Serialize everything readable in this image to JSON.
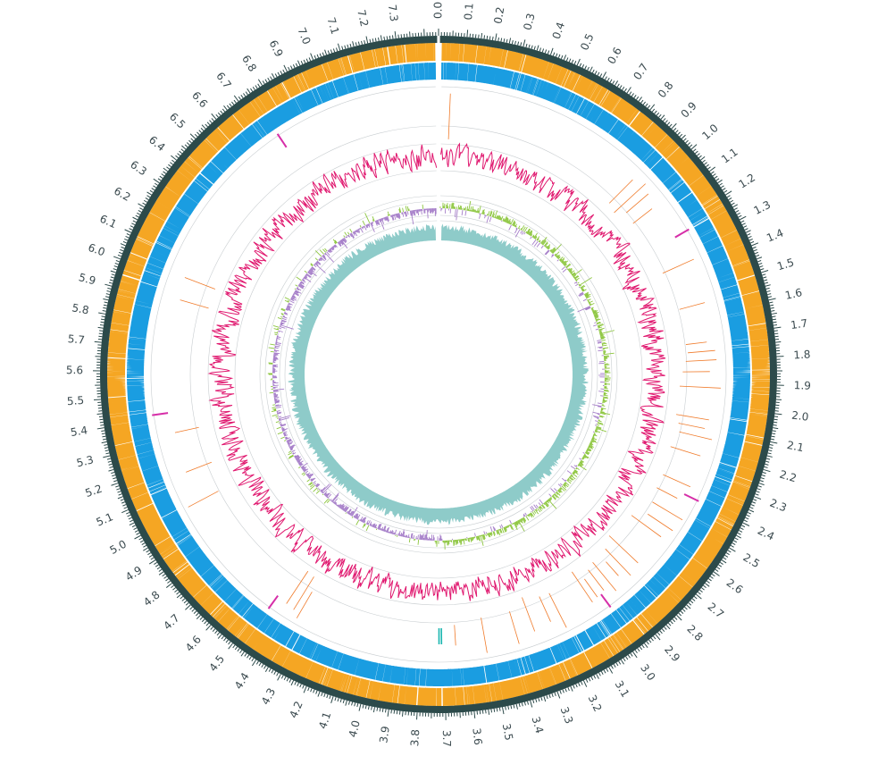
{
  "diagram": {
    "type": "circular-genome-map",
    "genome_length_mb": 7.45,
    "tick_labels": [
      "0.0",
      "0.1",
      "0.2",
      "0.3",
      "0.4",
      "0.5",
      "0.6",
      "0.7",
      "0.8",
      "0.9",
      "1.0",
      "1.1",
      "1.2",
      "1.3",
      "1.4",
      "1.5",
      "1.6",
      "1.7",
      "1.8",
      "1.9",
      "2.0",
      "2.1",
      "2.2",
      "2.3",
      "2.4",
      "2.5",
      "2.6",
      "2.7",
      "2.8",
      "2.9",
      "3.0",
      "3.1",
      "3.2",
      "3.3",
      "3.4",
      "3.5",
      "3.6",
      "3.7",
      "3.8",
      "3.9",
      "4.0",
      "4.1",
      "4.2",
      "4.3",
      "4.4",
      "4.5",
      "4.6",
      "4.7",
      "4.8",
      "4.9",
      "5.0",
      "5.1",
      "5.2",
      "5.3",
      "5.4",
      "5.5",
      "5.6",
      "5.7",
      "5.8",
      "5.9",
      "6.0",
      "6.1",
      "6.2",
      "6.3",
      "6.4",
      "6.5",
      "6.6",
      "6.7",
      "6.8",
      "6.9",
      "7.0",
      "7.1",
      "7.2",
      "7.3"
    ],
    "tracks": [
      {
        "name": "backbone",
        "color": "#2c4a4a"
      },
      {
        "name": "forward-strand-genes",
        "color": "#f5a623"
      },
      {
        "name": "reverse-strand-genes",
        "color": "#1a9de1"
      },
      {
        "name": "rna-features",
        "colors": [
          "#f07b2b",
          "#d62ea8",
          "#1ab6b0"
        ]
      },
      {
        "name": "gc-content",
        "color": "#e0186f"
      },
      {
        "name": "gc-skew",
        "colors": [
          "#8dc63f",
          "#a67fc9"
        ]
      },
      {
        "name": "depth",
        "color": "#8ecbc9"
      }
    ],
    "rna_features": {
      "orange": [
        0.05,
        0.93,
        0.98,
        1.02,
        1.08,
        1.36,
        1.55,
        1.72,
        1.76,
        1.8,
        1.85,
        1.92,
        2.06,
        2.1,
        2.14,
        2.22,
        2.36,
        2.43,
        2.5,
        2.56,
        2.61,
        2.76,
        2.82,
        2.86,
        2.91,
        2.95,
        2.99,
        3.02,
        3.17,
        3.22,
        3.3,
        3.38,
        3.52,
        3.65,
        4.35,
        4.38,
        4.42,
        5.01,
        5.15,
        5.33,
        5.92,
        6.02
      ],
      "magenta": [
        1.24,
        2.4,
        2.97,
        4.47,
        5.42,
        6.75
      ],
      "teal": [
        3.712,
        3.723
      ]
    }
  }
}
